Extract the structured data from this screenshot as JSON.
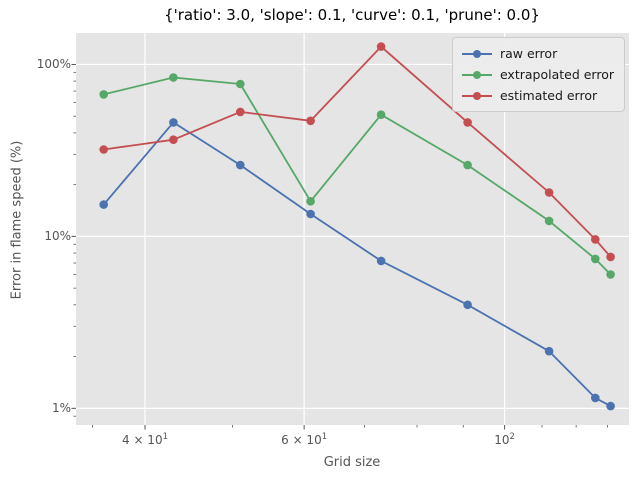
{
  "title": "{'ratio': 3.0, 'slope': 0.1, 'curve': 0.1, 'prune': 0.0}",
  "x_axis": {
    "label": "Grid size",
    "scale": "log",
    "range": [
      33.55,
      137.3
    ],
    "major_ticks": [
      {
        "value": 40,
        "base": "4 × 10",
        "exp": "1"
      },
      {
        "value": 60,
        "base": "6 × 10",
        "exp": "1"
      },
      {
        "value": 100,
        "base": "10",
        "exp": "2"
      }
    ],
    "minor_ticks": [
      35,
      50,
      70,
      80,
      90,
      110,
      120,
      130
    ]
  },
  "y_axis": {
    "label": "Error in flame speed (%)",
    "scale": "log",
    "range": [
      0.8,
      152.4
    ],
    "major_ticks": [
      {
        "value": 100,
        "label": "100%"
      },
      {
        "value": 10,
        "label": "10%"
      },
      {
        "value": 1,
        "label": "1%"
      }
    ],
    "minor_ticks": [
      90,
      80,
      70,
      60,
      50,
      40,
      30,
      20,
      9,
      8,
      7,
      6,
      5,
      4,
      3,
      2,
      0.9
    ]
  },
  "legend": {
    "position": "upper right",
    "items": [
      {
        "label": "raw error",
        "color": "#4C72B0"
      },
      {
        "label": "extrapolated error",
        "color": "#55A868"
      },
      {
        "label": "estimated error",
        "color": "#C44E52"
      }
    ]
  },
  "style": {
    "axes_background": "#e5e5e5",
    "gridline_color": "#ffffff",
    "tick_color": "#555555",
    "text_color": "#555555",
    "title_color": "#000000"
  },
  "chart_data": {
    "type": "line",
    "title": "{'ratio': 3.0, 'slope': 0.1, 'curve': 0.1, 'prune': 0.0}",
    "xlabel": "Grid size",
    "ylabel": "Error in flame speed (%)",
    "x_scale": "log",
    "y_scale": "log",
    "xlim": [
      33.55,
      137.3
    ],
    "ylim": [
      0.8,
      152.4
    ],
    "grid": true,
    "legend_position": "upper right",
    "x": [
      36,
      43,
      51,
      61,
      73,
      91,
      112,
      126,
      131
    ],
    "series": [
      {
        "name": "raw error",
        "color": "#4C72B0",
        "values": [
          15.3,
          46,
          26,
          13.5,
          7.2,
          4.0,
          2.15,
          1.15,
          1.03
        ]
      },
      {
        "name": "extrapolated error",
        "color": "#55A868",
        "values": [
          67,
          84,
          77,
          16,
          51,
          26,
          12.3,
          7.4,
          6.0
        ]
      },
      {
        "name": "estimated error",
        "color": "#C44E52",
        "values": [
          32,
          36.5,
          53,
          47,
          127,
          46,
          18,
          9.6,
          7.6
        ]
      }
    ]
  }
}
